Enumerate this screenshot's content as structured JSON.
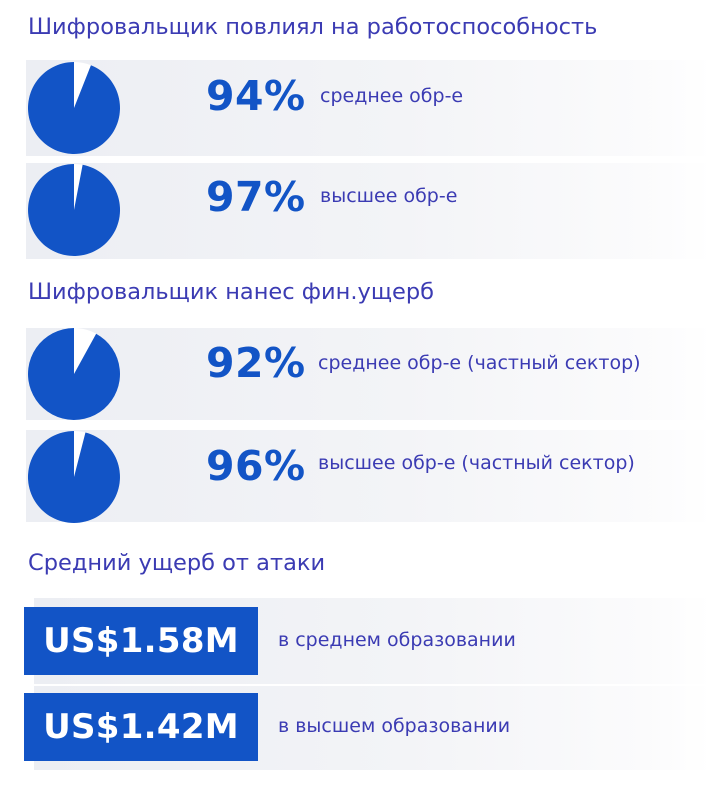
{
  "chart_data": [
    {
      "type": "pie",
      "title": "Шифровальщик повлиял на работоспособность",
      "items": [
        {
          "value": 94,
          "label": "94%",
          "description": "среднее обр-е"
        },
        {
          "value": 97,
          "label": "97%",
          "description": "высшее обр-е"
        }
      ]
    },
    {
      "type": "pie",
      "title": "Шифровальщик нанес фин.ущерб",
      "items": [
        {
          "value": 92,
          "label": "92%",
          "description": "среднее обр-е (частный сектор)"
        },
        {
          "value": 96,
          "label": "96%",
          "description": "высшее обр-е (частный сектор)"
        }
      ]
    },
    {
      "type": "table",
      "title": "Средний ущерб от атаки",
      "items": [
        {
          "value": 1.58,
          "label": "US$1.58M",
          "description": "в среднем образовании"
        },
        {
          "value": 1.42,
          "label": "US$1.42M",
          "description": "в высшем образовании"
        }
      ]
    }
  ],
  "colors": {
    "accent": "#1254c6",
    "heading_text": "#3b3bb3",
    "band": "#eff1f5",
    "pie_empty": "#ffffff"
  }
}
